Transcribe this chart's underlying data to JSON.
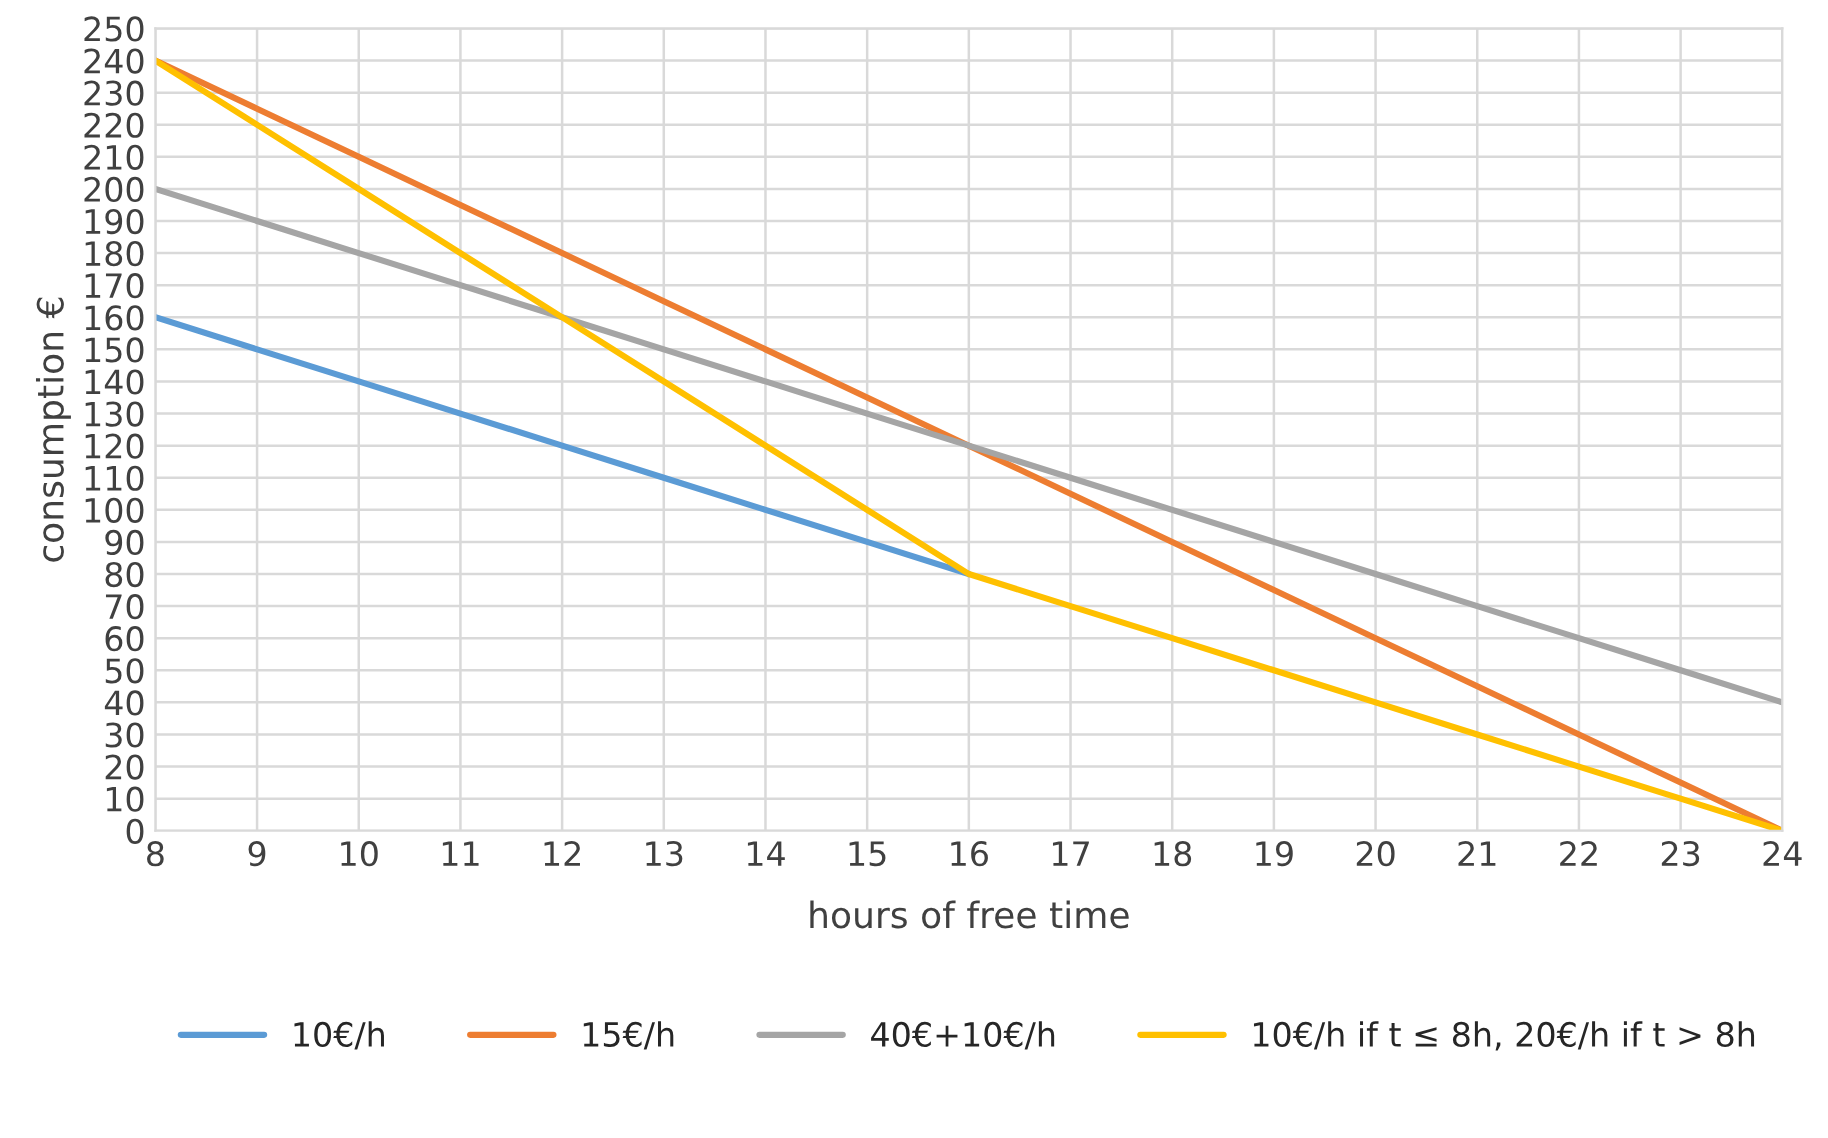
{
  "chart_data": {
    "type": "line",
    "xlabel": "hours of free time",
    "ylabel": "consumption €",
    "x": [
      8,
      9,
      10,
      11,
      12,
      13,
      14,
      15,
      16,
      17,
      18,
      19,
      20,
      21,
      22,
      23,
      24
    ],
    "series": [
      {
        "name": "10€/h",
        "color": "#5b9bd5",
        "values": [
          160,
          150,
          140,
          130,
          120,
          110,
          100,
          90,
          80,
          null,
          null,
          null,
          null,
          null,
          null,
          null,
          null
        ]
      },
      {
        "name": "15€/h",
        "color": "#ed7d31",
        "values": [
          240,
          225,
          210,
          195,
          180,
          165,
          150,
          135,
          120,
          105,
          90,
          75,
          60,
          45,
          30,
          15,
          0
        ]
      },
      {
        "name": "40€+10€/h",
        "color": "#a5a5a5",
        "values": [
          200,
          190,
          180,
          170,
          160,
          150,
          140,
          130,
          120,
          110,
          100,
          90,
          80,
          70,
          60,
          50,
          40
        ]
      },
      {
        "name": "10€/h if t ≤ 8h, 20€/h if t > 8h",
        "color": "#ffc000",
        "values": [
          240,
          220,
          200,
          180,
          160,
          140,
          120,
          100,
          80,
          70,
          60,
          50,
          40,
          30,
          20,
          10,
          0
        ]
      }
    ],
    "xlim": [
      8,
      24
    ],
    "xticks": [
      8,
      9,
      10,
      11,
      12,
      13,
      14,
      15,
      16,
      17,
      18,
      19,
      20,
      21,
      22,
      23,
      24
    ],
    "ylim": [
      0,
      250
    ],
    "yticks": [
      0,
      10,
      20,
      30,
      40,
      50,
      60,
      70,
      80,
      90,
      100,
      110,
      120,
      130,
      140,
      150,
      160,
      170,
      180,
      190,
      200,
      210,
      220,
      230,
      240,
      250
    ],
    "grid": true,
    "legend": "bottom",
    "marker": "none",
    "line_style": "solid"
  }
}
